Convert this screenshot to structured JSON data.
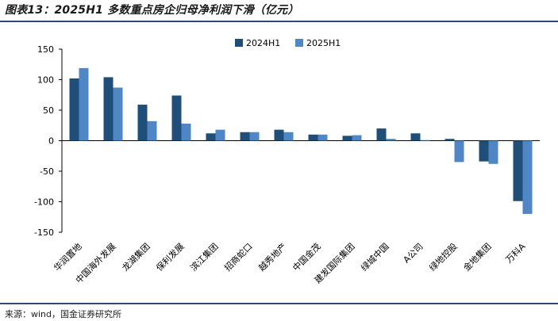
{
  "title": "图表13：2025H1 多数重点房企归母净利润下滑（亿元）",
  "source": "来源：wind，国金证券研究所",
  "colors": {
    "s2024": "#1f4e79",
    "s2025": "#4f87c6",
    "rule": "#2c4a7a"
  },
  "chart_data": {
    "type": "bar",
    "title": "",
    "xlabel": "",
    "ylabel": "",
    "ylim": [
      -150,
      150
    ],
    "yticks": [
      150,
      100,
      50,
      0,
      -50,
      -100,
      -150
    ],
    "legend_position": "top-center",
    "grid": false,
    "categories": [
      "华润置地",
      "中国海外发展",
      "龙湖集团",
      "保利发展",
      "滨江集团",
      "招商蛇口",
      "越秀地产",
      "中国金茂",
      "建发国际集团",
      "绿城中国",
      "A公司",
      "绿地控股",
      "金地集团",
      "万科A"
    ],
    "series": [
      {
        "name": "2024H1",
        "values": [
          102,
          104,
          59,
          74,
          12,
          14,
          18,
          10,
          8,
          20,
          12,
          3,
          -34,
          -99
        ]
      },
      {
        "name": "2025H1",
        "values": [
          119,
          87,
          32,
          28,
          18,
          14,
          14,
          10,
          9,
          3,
          1,
          -35,
          -38,
          -120
        ]
      }
    ]
  }
}
